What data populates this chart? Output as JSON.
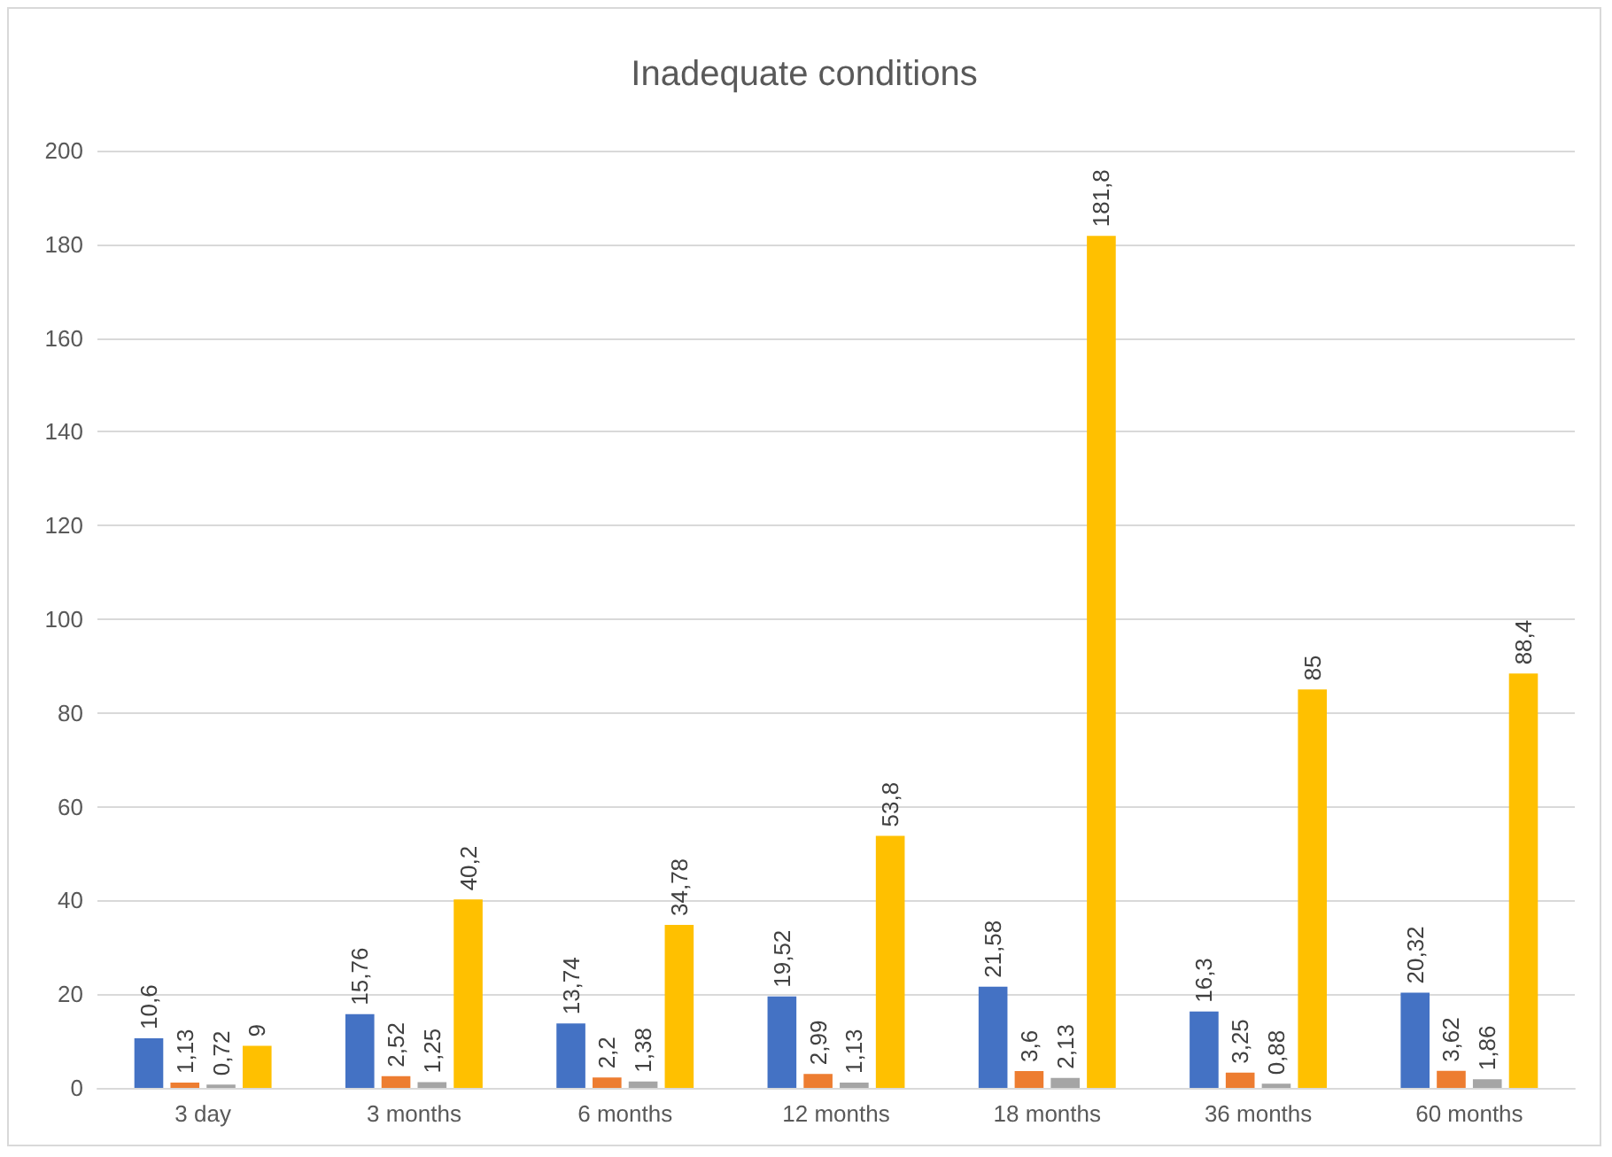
{
  "chart_data": {
    "type": "bar",
    "title": "Inadequate conditions",
    "categories": [
      "3 day",
      "3 months",
      "6 months",
      "12 months",
      "18 months",
      "36 months",
      "60 months"
    ],
    "series": [
      {
        "color": "#4472c4",
        "values": [
          10.6,
          15.76,
          13.74,
          19.52,
          21.58,
          16.3,
          20.32
        ],
        "value_labels": [
          "10,6",
          "15,76",
          "13,74",
          "19,52",
          "21,58",
          "16,3",
          "20,32"
        ]
      },
      {
        "color": "#ed7d31",
        "values": [
          1.13,
          2.52,
          2.2,
          2.99,
          3.6,
          3.25,
          3.62
        ],
        "value_labels": [
          "1,13",
          "2,52",
          "2,2",
          "2,99",
          "3,6",
          "3,25",
          "3,62"
        ]
      },
      {
        "color": "#a5a5a5",
        "values": [
          0.72,
          1.25,
          1.38,
          1.13,
          2.13,
          0.88,
          1.86
        ],
        "value_labels": [
          "0,72",
          "1,25",
          "1,38",
          "1,13",
          "2,13",
          "0,88",
          "1,86"
        ]
      },
      {
        "color": "#ffc000",
        "values": [
          9,
          40.2,
          34.78,
          53.8,
          181.8,
          85,
          88.4
        ],
        "value_labels": [
          "9",
          "40,2",
          "34,78",
          "53,8",
          "181,8",
          "85",
          "88,4"
        ]
      }
    ],
    "ylim": [
      0,
      200
    ],
    "yticks": [
      0,
      20,
      40,
      60,
      80,
      100,
      120,
      140,
      160,
      180,
      200
    ],
    "grid": "y"
  }
}
